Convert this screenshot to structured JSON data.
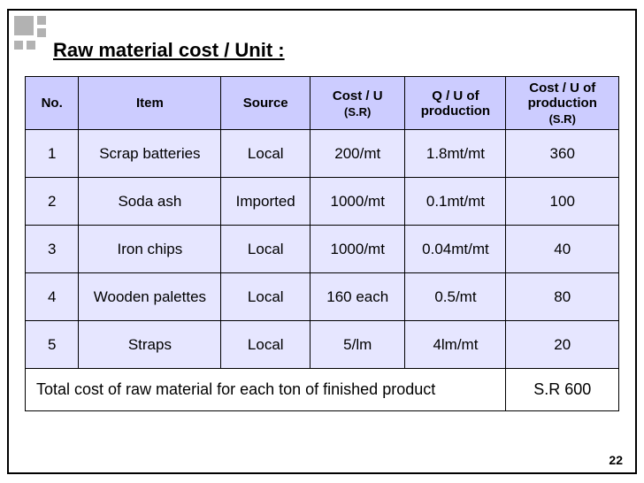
{
  "title": "Raw material cost / Unit :",
  "page_number": "22",
  "colors": {
    "header_bg": "#ccccff",
    "row_bg": "#e6e6ff",
    "footer_bg": "#ffffff",
    "border": "#000000",
    "decoration": "#b2b2b2"
  },
  "table": {
    "columns": [
      {
        "key": "no",
        "label": "No.",
        "sub": ""
      },
      {
        "key": "item",
        "label": "Item",
        "sub": ""
      },
      {
        "key": "source",
        "label": "Source",
        "sub": ""
      },
      {
        "key": "cost_u",
        "label": "Cost / U",
        "sub": "(S.R)"
      },
      {
        "key": "qty_u",
        "label": "Q / U of production",
        "sub": ""
      },
      {
        "key": "cost_prod",
        "label": "Cost / U of production",
        "sub": "(S.R)"
      }
    ],
    "rows": [
      {
        "no": "1",
        "item": "Scrap batteries",
        "source": "Local",
        "cost_u": "200/mt",
        "qty_u": "1.8mt/mt",
        "cost_prod": "360"
      },
      {
        "no": "2",
        "item": "Soda ash",
        "source": "Imported",
        "cost_u": "1000/mt",
        "qty_u": "0.1mt/mt",
        "cost_prod": "100"
      },
      {
        "no": "3",
        "item": "Iron chips",
        "source": "Local",
        "cost_u": "1000/mt",
        "qty_u": "0.04mt/mt",
        "cost_prod": "40"
      },
      {
        "no": "4",
        "item": "Wooden palettes",
        "source": "Local",
        "cost_u": "160 each",
        "qty_u": "0.5/mt",
        "cost_prod": "80"
      },
      {
        "no": "5",
        "item": "Straps",
        "source": "Local",
        "cost_u": "5/lm",
        "qty_u": "4lm/mt",
        "cost_prod": "20"
      }
    ],
    "footer": {
      "label": "Total cost of raw material for each ton of finished product",
      "value": "S.R 600"
    }
  }
}
